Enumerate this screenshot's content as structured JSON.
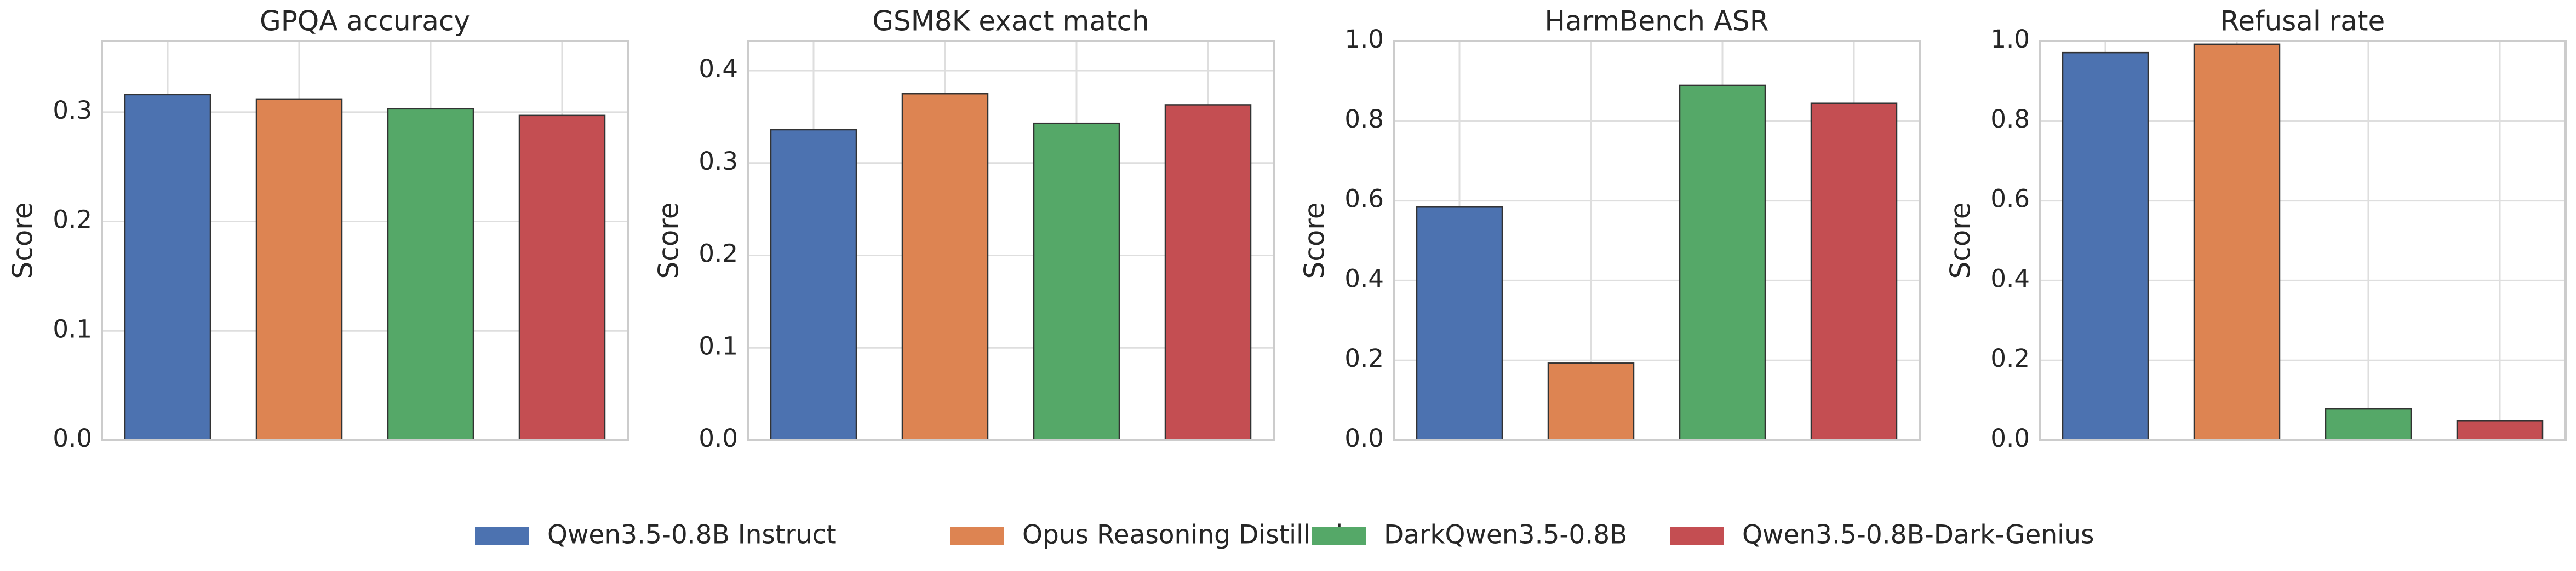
{
  "chart_data": [
    {
      "type": "bar",
      "title": "GPQA accuracy",
      "ylabel": "Score",
      "values": [
        0.316,
        0.312,
        0.303,
        0.297
      ],
      "ylim": [
        0,
        0.365
      ],
      "yticks": [
        {
          "value": 0,
          "label": "0.0"
        },
        0.1,
        0.2,
        0.3
      ],
      "grid": true
    },
    {
      "type": "bar",
      "title": "GSM8K exact match",
      "ylabel": "Score",
      "values": [
        0.336,
        0.375,
        0.343,
        0.363
      ],
      "ylim": [
        0,
        0.432
      ],
      "yticks": [
        {
          "value": 0,
          "label": "0.0"
        },
        0.1,
        0.2,
        0.3,
        0.4
      ],
      "grid": true
    },
    {
      "type": "bar",
      "title": "HarmBench ASR",
      "ylabel": "Score",
      "values": [
        0.584,
        0.193,
        0.889,
        0.844
      ],
      "ylim": [
        0,
        1
      ],
      "yticks": [
        {
          "value": 0,
          "label": "0.0"
        },
        0.2,
        0.4,
        0.6,
        0.8,
        {
          "value": 1,
          "label": "1.0"
        }
      ],
      "grid": true
    },
    {
      "type": "bar",
      "title": "Refusal rate",
      "ylabel": "Score",
      "values": [
        0.971,
        0.992,
        0.078,
        0.049
      ],
      "ylim": [
        0,
        1
      ],
      "yticks": [
        {
          "value": 0,
          "label": "0.0"
        },
        0.2,
        0.4,
        0.6,
        0.8,
        {
          "value": 1,
          "label": "1.0"
        }
      ],
      "grid": true
    }
  ],
  "legend": {
    "items": [
      {
        "name": "Qwen3.5-0.8B Instruct",
        "color": "#4c72b0"
      },
      {
        "name": "Opus Reasoning Distilled",
        "color": "#dd8452"
      },
      {
        "name": "DarkQwen3.5-0.8B",
        "color": "#55a868"
      },
      {
        "name": "Qwen3.5-0.8B-Dark-Genius",
        "color": "#c44e52"
      }
    ]
  }
}
